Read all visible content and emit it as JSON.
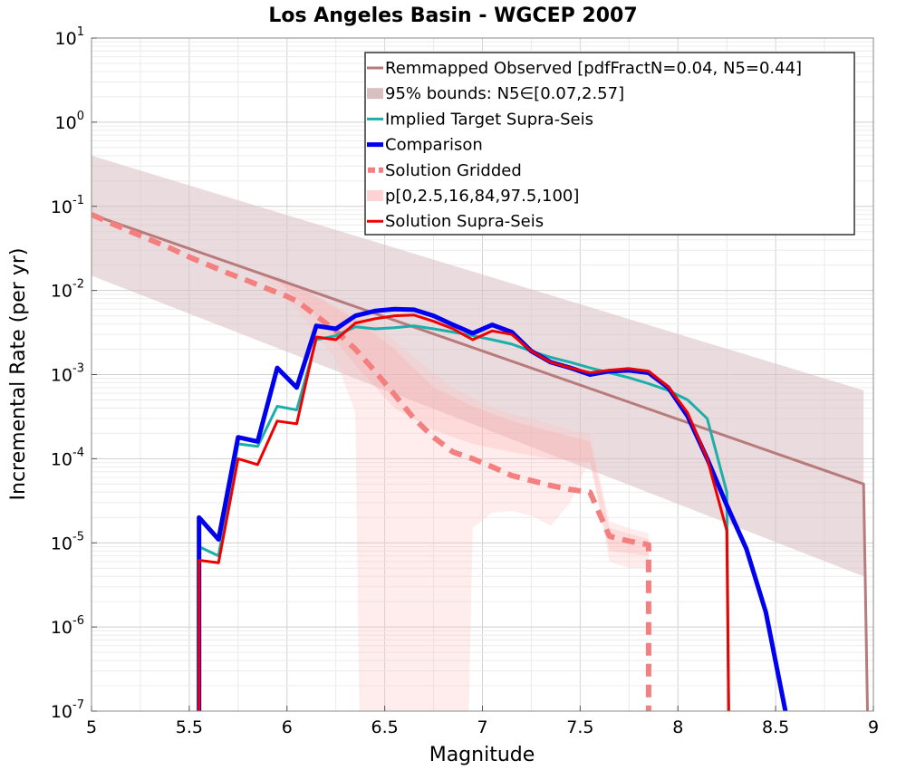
{
  "chart_data": {
    "type": "line",
    "title": "Los Angeles Basin - WGCEP 2007",
    "xlabel": "Magnitude",
    "ylabel": "Incremental Rate (per yr)",
    "xlim": [
      5,
      9
    ],
    "ylim": [
      1e-07,
      10
    ],
    "y_scale": "log",
    "grid": true,
    "legend_position": "top-right",
    "x_ticks": [
      "5",
      "5.5",
      "6",
      "6.5",
      "7",
      "7.5",
      "8",
      "8.5",
      "9"
    ],
    "y_ticks": [
      {
        "base": "10",
        "exp": "-7",
        "value": 1e-07
      },
      {
        "base": "10",
        "exp": "-6",
        "value": 1e-06
      },
      {
        "base": "10",
        "exp": "-5",
        "value": 1e-05
      },
      {
        "base": "10",
        "exp": "-4",
        "value": 0.0001
      },
      {
        "base": "10",
        "exp": "-3",
        "value": 0.001
      },
      {
        "base": "10",
        "exp": "-2",
        "value": 0.01
      },
      {
        "base": "10",
        "exp": "-1",
        "value": 0.1
      },
      {
        "base": "10",
        "exp": "0",
        "value": 1
      },
      {
        "base": "10",
        "exp": "1",
        "value": 10
      }
    ],
    "legend": [
      "Remmapped Observed [pdfFractN=0.04, N5=0.44]",
      "95% bounds: N5∈[0.07,2.57]",
      "Implied Target Supra-Seis",
      "Comparison",
      "Solution Gridded",
      "p[0,2.5,16,84,97.5,100]",
      "Solution Supra-Seis"
    ],
    "bands": [
      {
        "name": "95% bounds: N5∈[0.07,2.57]",
        "color": "#d8bfc2",
        "opacity": 0.55,
        "upper": [
          [
            5.0,
            0.4
          ],
          [
            8.95,
            0.00065
          ]
        ],
        "lower": [
          [
            5.0,
            0.015
          ],
          [
            8.95,
            4e-06
          ]
        ]
      },
      {
        "name": "p[0,2.5,16,84,97.5,100]",
        "color": "#ffc0c0",
        "opacity": 0.3,
        "upper": [
          [
            5.85,
            0.016
          ],
          [
            6.05,
            0.011
          ],
          [
            6.25,
            0.0065
          ],
          [
            6.45,
            0.004
          ],
          [
            6.65,
            0.0016
          ],
          [
            6.85,
            0.0007
          ],
          [
            7.05,
            0.0004
          ],
          [
            7.25,
            0.0003
          ],
          [
            7.45,
            0.00022
          ],
          [
            7.55,
            0.0002
          ],
          [
            7.65,
            1.8e-05
          ],
          [
            7.75,
            1.5e-05
          ],
          [
            7.85,
            1.3e-05
          ]
        ],
        "lower": [
          [
            5.85,
            0.016
          ],
          [
            6.05,
            0.006
          ],
          [
            6.25,
            0.0015
          ],
          [
            6.35,
            0.00035
          ],
          [
            6.37,
            1e-07
          ],
          [
            6.93,
            1e-07
          ],
          [
            6.95,
            1.5e-05
          ],
          [
            7.05,
            2.3e-05
          ],
          [
            7.15,
            2.4e-05
          ],
          [
            7.25,
            2.1e-05
          ],
          [
            7.35,
            1.6e-05
          ],
          [
            7.45,
            3e-05
          ],
          [
            7.55,
            0.0001
          ],
          [
            7.65,
            6e-06
          ],
          [
            7.75,
            5e-06
          ],
          [
            7.85,
            5e-06
          ]
        ]
      },
      {
        "name": "p[0,2.5,16,84,97.5,100]",
        "color": "#ff9a9a",
        "opacity": 0.22,
        "upper": [
          [
            5.95,
            0.015
          ],
          [
            6.15,
            0.0085
          ],
          [
            6.35,
            0.0045
          ],
          [
            6.55,
            0.002
          ],
          [
            6.75,
            0.0007
          ],
          [
            6.95,
            0.00042
          ],
          [
            7.15,
            0.00028
          ],
          [
            7.35,
            0.00021
          ],
          [
            7.55,
            0.00016
          ],
          [
            7.65,
            1.5e-05
          ],
          [
            7.85,
            1.1e-05
          ]
        ],
        "lower": [
          [
            5.95,
            0.013
          ],
          [
            6.15,
            0.005
          ],
          [
            6.35,
            0.0013
          ],
          [
            6.55,
            0.0004
          ],
          [
            6.75,
            0.00022
          ],
          [
            6.95,
            0.00015
          ],
          [
            7.15,
            0.00012
          ],
          [
            7.35,
            0.0001
          ],
          [
            7.55,
            9e-05
          ],
          [
            7.65,
            8e-06
          ],
          [
            7.85,
            7e-06
          ]
        ]
      }
    ],
    "series": [
      {
        "name": "Remmapped Observed [pdfFractN=0.04, N5=0.44]",
        "color": "#b87a7a",
        "width": 3,
        "dash": "",
        "points": [
          [
            5.0,
            0.08
          ],
          [
            8.95,
            5e-05
          ],
          [
            8.97,
            1e-07
          ]
        ]
      },
      {
        "name": "Solution Gridded",
        "color": "#f47f7f",
        "width": 6,
        "dash": "14 9",
        "points": [
          [
            5.0,
            0.08
          ],
          [
            5.1,
            0.063
          ],
          [
            5.2,
            0.05
          ],
          [
            5.3,
            0.04
          ],
          [
            5.4,
            0.032
          ],
          [
            5.5,
            0.025
          ],
          [
            5.6,
            0.02
          ],
          [
            5.7,
            0.016
          ],
          [
            5.8,
            0.013
          ],
          [
            5.9,
            0.0105
          ],
          [
            6.0,
            0.0085
          ],
          [
            6.05,
            0.0075
          ],
          [
            6.15,
            0.005
          ],
          [
            6.25,
            0.0033
          ],
          [
            6.35,
            0.002
          ],
          [
            6.45,
            0.0011
          ],
          [
            6.55,
            0.00058
          ],
          [
            6.65,
            0.0003
          ],
          [
            6.75,
            0.00018
          ],
          [
            6.85,
            0.00012
          ],
          [
            6.95,
            0.0001
          ],
          [
            7.05,
            8e-05
          ],
          [
            7.15,
            6.3e-05
          ],
          [
            7.25,
            5.5e-05
          ],
          [
            7.35,
            4.8e-05
          ],
          [
            7.45,
            4.3e-05
          ],
          [
            7.55,
            4e-05
          ],
          [
            7.65,
            1.2e-05
          ],
          [
            7.75,
            1.05e-05
          ],
          [
            7.85,
            9.5e-06
          ],
          [
            7.85,
            1e-07
          ]
        ]
      },
      {
        "name": "Implied Target Supra-Seis",
        "color": "#1aafaa",
        "width": 3,
        "dash": "",
        "points": [
          [
            5.55,
            1e-07
          ],
          [
            5.55,
            9e-06
          ],
          [
            5.65,
            7e-06
          ],
          [
            5.75,
            0.00015
          ],
          [
            5.85,
            0.00014
          ],
          [
            5.95,
            0.00042
          ],
          [
            6.05,
            0.00038
          ],
          [
            6.15,
            0.0026
          ],
          [
            6.25,
            0.0029
          ],
          [
            6.35,
            0.0037
          ],
          [
            6.45,
            0.0035
          ],
          [
            6.55,
            0.0036
          ],
          [
            6.65,
            0.0038
          ],
          [
            6.75,
            0.0035
          ],
          [
            6.85,
            0.0032
          ],
          [
            6.95,
            0.0029
          ],
          [
            7.05,
            0.0026
          ],
          [
            7.15,
            0.0023
          ],
          [
            7.25,
            0.0019
          ],
          [
            7.35,
            0.0016
          ],
          [
            7.45,
            0.0014
          ],
          [
            7.55,
            0.0012
          ],
          [
            7.65,
            0.00105
          ],
          [
            7.75,
            0.00092
          ],
          [
            7.85,
            0.00078
          ],
          [
            7.95,
            0.00065
          ],
          [
            8.05,
            0.0005
          ],
          [
            8.15,
            0.0003
          ],
          [
            8.25,
            4e-05
          ],
          [
            8.26,
            1e-07
          ]
        ]
      },
      {
        "name": "Comparison",
        "color": "#0000ee",
        "width": 5,
        "dash": "",
        "points": [
          [
            5.55,
            1e-07
          ],
          [
            5.55,
            2e-05
          ],
          [
            5.65,
            1.1e-05
          ],
          [
            5.75,
            0.00018
          ],
          [
            5.85,
            0.00016
          ],
          [
            5.95,
            0.0012
          ],
          [
            6.05,
            0.0007
          ],
          [
            6.15,
            0.0038
          ],
          [
            6.25,
            0.0035
          ],
          [
            6.35,
            0.005
          ],
          [
            6.45,
            0.0057
          ],
          [
            6.55,
            0.006
          ],
          [
            6.65,
            0.0059
          ],
          [
            6.75,
            0.005
          ],
          [
            6.85,
            0.0039
          ],
          [
            6.95,
            0.0031
          ],
          [
            7.05,
            0.0039
          ],
          [
            7.15,
            0.0032
          ],
          [
            7.25,
            0.0019
          ],
          [
            7.35,
            0.0014
          ],
          [
            7.45,
            0.0012
          ],
          [
            7.55,
            0.001
          ],
          [
            7.65,
            0.0011
          ],
          [
            7.75,
            0.00112
          ],
          [
            7.85,
            0.00105
          ],
          [
            7.95,
            0.0007
          ],
          [
            8.05,
            0.00032
          ],
          [
            8.15,
            0.0001
          ],
          [
            8.25,
            2.8e-05
          ],
          [
            8.35,
            8.5e-06
          ],
          [
            8.45,
            1.5e-06
          ],
          [
            8.55,
            1e-07
          ]
        ]
      },
      {
        "name": "Solution Supra-Seis",
        "color": "#ee0000",
        "width": 3,
        "dash": "",
        "points": [
          [
            5.55,
            1e-07
          ],
          [
            5.55,
            6.2e-06
          ],
          [
            5.65,
            5.8e-06
          ],
          [
            5.75,
            0.0001
          ],
          [
            5.85,
            8.5e-05
          ],
          [
            5.95,
            0.00028
          ],
          [
            6.05,
            0.00026
          ],
          [
            6.15,
            0.0028
          ],
          [
            6.25,
            0.0026
          ],
          [
            6.35,
            0.0041
          ],
          [
            6.45,
            0.0046
          ],
          [
            6.55,
            0.005
          ],
          [
            6.65,
            0.0051
          ],
          [
            6.75,
            0.0043
          ],
          [
            6.85,
            0.0035
          ],
          [
            6.95,
            0.0026
          ],
          [
            7.05,
            0.0033
          ],
          [
            7.15,
            0.003
          ],
          [
            7.25,
            0.0019
          ],
          [
            7.35,
            0.0014
          ],
          [
            7.45,
            0.0012
          ],
          [
            7.55,
            0.00105
          ],
          [
            7.65,
            0.00113
          ],
          [
            7.75,
            0.00118
          ],
          [
            7.85,
            0.0011
          ],
          [
            7.95,
            0.00072
          ],
          [
            8.05,
            0.00035
          ],
          [
            8.15,
            0.0001
          ],
          [
            8.25,
            1.4e-05
          ],
          [
            8.26,
            1e-07
          ]
        ]
      }
    ]
  }
}
